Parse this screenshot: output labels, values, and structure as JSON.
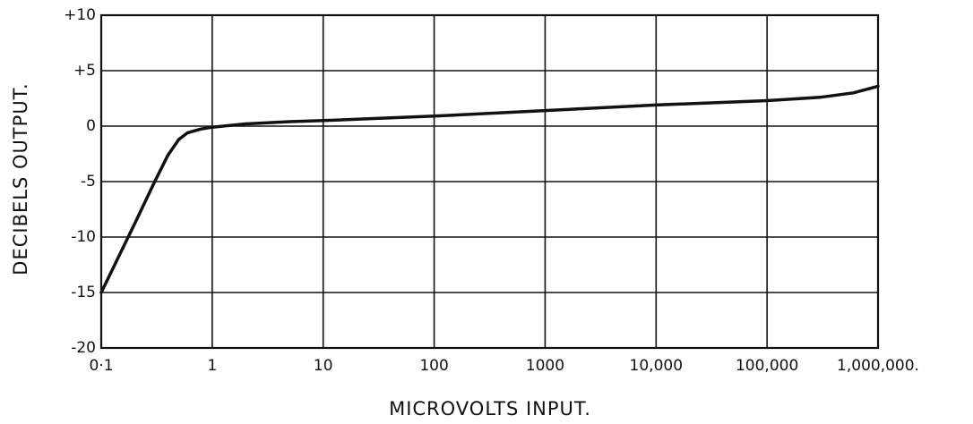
{
  "chart_data": {
    "type": "line",
    "xlabel": "MICROVOLTS INPUT.",
    "ylabel": "DECIBELS OUTPUT.",
    "xscale": "log",
    "grid": true,
    "xlim": [
      0.1,
      1000000
    ],
    "ylim": [
      -20,
      10
    ],
    "xticks": [
      {
        "value": 0.1,
        "label": "0·1"
      },
      1,
      10,
      100,
      1000,
      {
        "value": 10000,
        "label": "10,000"
      },
      {
        "value": 100000,
        "label": "100,000"
      },
      {
        "value": 1000000,
        "label": "1,000,000."
      }
    ],
    "yticks": [
      {
        "value": 10,
        "label": "+10"
      },
      {
        "value": 5,
        "label": "+5"
      },
      0,
      -5,
      -10,
      -15,
      -20
    ],
    "color": "#111111",
    "x": [
      0.1,
      0.2,
      0.3,
      0.4,
      0.5,
      0.6,
      0.8,
      1,
      2,
      5,
      10,
      100,
      1000,
      10000,
      100000,
      300000,
      600000,
      1000000
    ],
    "values": [
      -15,
      -8.8,
      -5.1,
      -2.6,
      -1.2,
      -0.6,
      -0.25,
      -0.1,
      0.2,
      0.4,
      0.5,
      0.9,
      1.4,
      1.9,
      2.3,
      2.6,
      3.0,
      3.6
    ]
  }
}
